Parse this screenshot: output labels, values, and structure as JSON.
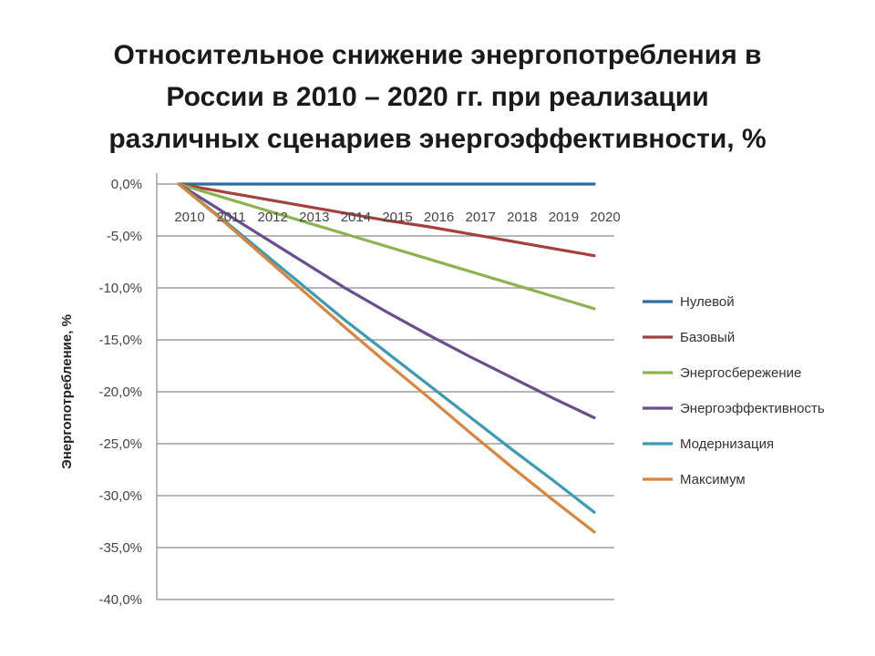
{
  "title_lines": [
    "Относительное снижение энергопотребления в",
    "России в 2010 – 2020 гг. при реализации",
    "различных сценариев энергоэффективности, %"
  ],
  "chart_data": {
    "type": "line",
    "title": "Относительное снижение энергопотребления в России в 2010 – 2020 гг. при реализации различных сценариев энергоэффективности, %",
    "xlabel": "",
    "ylabel": "Энергопотребление, %",
    "x": [
      "2010",
      "2011",
      "2012",
      "2013",
      "2014",
      "2015",
      "2016",
      "2017",
      "2018",
      "2019",
      "2020"
    ],
    "ylim": [
      -40,
      0
    ],
    "yticks": [
      0,
      -5,
      -10,
      -15,
      -20,
      -25,
      -30,
      -35,
      -40
    ],
    "ytick_labels": [
      "0,0%",
      "-5,0%",
      "-10,0%",
      "-15,0%",
      "-20,0%",
      "-25,0%",
      "-30,0%",
      "-35,0%",
      "-40,0%"
    ],
    "grid": true,
    "legend_position": "right",
    "series": [
      {
        "name": "Нулевой",
        "color": "#2e6d9e",
        "values": [
          0,
          0,
          0,
          0,
          0,
          0,
          0,
          0,
          0,
          0,
          0
        ]
      },
      {
        "name": "Базовый",
        "color": "#a4403d",
        "values": [
          0,
          -0.7,
          -1.4,
          -2.1,
          -2.8,
          -3.5,
          -4.1,
          -4.8,
          -5.5,
          -6.2,
          -6.9
        ]
      },
      {
        "name": "Энергосбережение",
        "color": "#8db350",
        "values": [
          0,
          -1.2,
          -2.4,
          -3.6,
          -4.8,
          -6.0,
          -7.2,
          -8.4,
          -9.6,
          -10.8,
          -12.0
        ]
      },
      {
        "name": "Энергоэффективность",
        "color": "#6a4f8e",
        "values": [
          0,
          -2.5,
          -5.0,
          -7.5,
          -10.0,
          -12.3,
          -14.5,
          -16.6,
          -18.6,
          -20.6,
          -22.5
        ]
      },
      {
        "name": "Модернизация",
        "color": "#3a9bb5",
        "values": [
          0,
          -3.2,
          -6.5,
          -9.8,
          -13.1,
          -16.2,
          -19.3,
          -22.4,
          -25.5,
          -28.5,
          -31.6
        ]
      },
      {
        "name": "Максимум",
        "color": "#d9853b",
        "values": [
          0,
          -3.3,
          -6.8,
          -10.3,
          -13.8,
          -17.2,
          -20.5,
          -23.9,
          -27.2,
          -30.4,
          -33.5
        ]
      }
    ]
  }
}
